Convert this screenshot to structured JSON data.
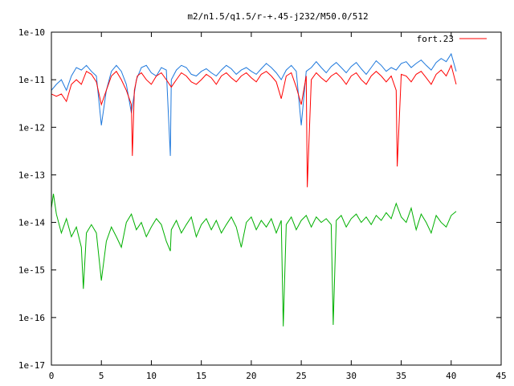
{
  "chart_data": {
    "type": "line",
    "title": "m2/n1.5/q1.5/r-+.45-j232/M50.0/512",
    "xlabel": "",
    "ylabel": "",
    "xlim": [
      0,
      45
    ],
    "ylim": [
      1e-17,
      1e-10
    ],
    "y_log_scale": true,
    "grid": false,
    "legend_position": "top-right",
    "x_ticks": [
      0,
      5,
      10,
      15,
      20,
      25,
      30,
      35,
      40,
      45
    ],
    "x_tick_labels": [
      "0",
      "5",
      "10",
      "15",
      "20",
      "25",
      "30",
      "35",
      "40",
      "45"
    ],
    "y_ticks": [
      1e-17,
      1e-16,
      1e-15,
      1e-14,
      1e-13,
      1e-12,
      1e-11,
      1e-10
    ],
    "y_tick_labels": [
      "1e-17",
      "1e-16",
      "1e-15",
      "1e-14",
      "1e-13",
      "1e-12",
      "1e-11",
      "1e-10"
    ],
    "series": [
      {
        "name": "fort.23",
        "color": "#ff0000",
        "x": [
          0,
          0.5,
          1,
          1.5,
          2,
          2.5,
          3,
          3.5,
          4,
          4.5,
          5,
          5.5,
          6,
          6.5,
          7,
          7.5,
          8,
          8.1,
          8.3,
          8.6,
          9,
          9.5,
          10,
          10.5,
          11,
          11.5,
          12,
          12.5,
          13,
          13.5,
          14,
          14.5,
          15,
          15.5,
          16,
          16.5,
          17,
          17.5,
          18,
          18.5,
          19,
          19.5,
          20,
          20.5,
          21,
          21.5,
          22,
          22.5,
          23,
          23.5,
          24,
          24.5,
          25,
          25.5,
          25.6,
          26,
          26.5,
          27,
          27.5,
          28,
          28.5,
          29,
          29.5,
          30,
          30.5,
          31,
          31.5,
          32,
          32.5,
          33,
          33.5,
          34,
          34.5,
          34.6,
          35,
          35.5,
          36,
          36.5,
          37,
          37.5,
          38,
          38.5,
          39,
          39.5,
          40,
          40.5
        ],
        "values": [
          5e-12,
          4.5e-12,
          5e-12,
          3.5e-12,
          8e-12,
          1e-11,
          8e-12,
          1.5e-11,
          1.3e-11,
          9e-12,
          3e-12,
          6e-12,
          1.2e-11,
          1.5e-11,
          1e-11,
          6e-12,
          3e-12,
          2.5e-13,
          6e-12,
          1.2e-11,
          1.4e-11,
          1e-11,
          8e-12,
          1.2e-11,
          1.4e-11,
          1e-11,
          7e-12,
          1e-11,
          1.4e-11,
          1.2e-11,
          9e-12,
          8e-12,
          1e-11,
          1.3e-11,
          1.1e-11,
          8e-12,
          1.2e-11,
          1.4e-11,
          1.1e-11,
          9e-12,
          1.2e-11,
          1.4e-11,
          1.1e-11,
          9e-12,
          1.3e-11,
          1.5e-11,
          1.2e-11,
          9e-12,
          4e-12,
          1.2e-11,
          1.4e-11,
          7e-12,
          3e-12,
          1.2e-11,
          5.5e-14,
          1e-11,
          1.4e-11,
          1.1e-11,
          9e-12,
          1.2e-11,
          1.4e-11,
          1.1e-11,
          8e-12,
          1.2e-11,
          1.4e-11,
          1e-11,
          8e-12,
          1.2e-11,
          1.5e-11,
          1.2e-11,
          9e-12,
          1.2e-11,
          6e-12,
          1.5e-13,
          1.3e-11,
          1.2e-11,
          9e-12,
          1.3e-11,
          1.5e-11,
          1.1e-11,
          8e-12,
          1.3e-11,
          1.6e-11,
          1.2e-11,
          2e-11,
          8e-12
        ]
      },
      {
        "name": "",
        "color": "#1e78dc",
        "x": [
          0,
          0.5,
          1,
          1.5,
          2,
          2.5,
          3,
          3.5,
          4,
          4.5,
          5,
          5.5,
          6,
          6.5,
          7,
          7.5,
          8,
          8.5,
          9,
          9.5,
          10,
          10.5,
          11,
          11.5,
          11.9,
          12,
          12.5,
          13,
          13.5,
          14,
          14.5,
          15,
          15.5,
          16,
          16.5,
          17,
          17.5,
          18,
          18.5,
          19,
          19.5,
          20,
          20.5,
          21,
          21.5,
          22,
          22.5,
          23,
          23.5,
          24,
          24.5,
          25,
          25.5,
          26,
          26.5,
          27,
          27.5,
          28,
          28.5,
          29,
          29.5,
          30,
          30.5,
          31,
          31.5,
          32,
          32.5,
          33,
          33.5,
          34,
          34.5,
          35,
          35.5,
          36,
          36.5,
          37,
          37.5,
          38,
          38.5,
          39,
          39.5,
          40,
          40.5
        ],
        "values": [
          6e-12,
          8e-12,
          1e-11,
          6e-12,
          1.2e-11,
          1.8e-11,
          1.6e-11,
          2e-11,
          1.5e-11,
          1.2e-11,
          1.1e-12,
          6e-12,
          1.5e-11,
          2e-11,
          1.5e-11,
          8e-12,
          2e-12,
          1e-11,
          1.8e-11,
          2e-11,
          1.4e-11,
          1.2e-11,
          1.8e-11,
          1.6e-11,
          2.5e-13,
          1e-11,
          1.6e-11,
          2e-11,
          1.8e-11,
          1.3e-11,
          1.2e-11,
          1.5e-11,
          1.7e-11,
          1.4e-11,
          1.2e-11,
          1.6e-11,
          2e-11,
          1.7e-11,
          1.3e-11,
          1.6e-11,
          1.8e-11,
          1.5e-11,
          1.3e-11,
          1.7e-11,
          2.2e-11,
          1.8e-11,
          1.4e-11,
          1e-11,
          1.6e-11,
          2e-11,
          1.5e-11,
          1.1e-12,
          1.5e-11,
          1.8e-11,
          2.4e-11,
          1.8e-11,
          1.4e-11,
          1.9e-11,
          2.3e-11,
          1.8e-11,
          1.4e-11,
          1.9e-11,
          2.3e-11,
          1.7e-11,
          1.3e-11,
          1.8e-11,
          2.5e-11,
          2e-11,
          1.5e-11,
          1.8e-11,
          1.6e-11,
          2.2e-11,
          2.4e-11,
          1.8e-11,
          2.2e-11,
          2.6e-11,
          2e-11,
          1.6e-11,
          2.3e-11,
          2.8e-11,
          2.4e-11,
          3.5e-11,
          1.5e-11
        ]
      },
      {
        "name": "",
        "color": "#00b000",
        "x": [
          0,
          0.2,
          0.5,
          1,
          1.5,
          2,
          2.5,
          3,
          3.2,
          3.5,
          4,
          4.5,
          5,
          5.5,
          6,
          6.5,
          7,
          7.5,
          8,
          8.5,
          9,
          9.5,
          10,
          10.5,
          11,
          11.5,
          11.9,
          12,
          12.5,
          13,
          13.5,
          14,
          14.5,
          15,
          15.5,
          16,
          16.5,
          17,
          17.5,
          18,
          18.5,
          19,
          19.5,
          20,
          20.5,
          21,
          21.5,
          22,
          22.5,
          23,
          23.2,
          23.5,
          24,
          24.5,
          25,
          25.5,
          26,
          26.5,
          27,
          27.5,
          28,
          28.2,
          28.5,
          29,
          29.5,
          30,
          30.5,
          31,
          31.5,
          32,
          32.5,
          33,
          33.5,
          34,
          34.5,
          35,
          35.5,
          36,
          36.5,
          37,
          37.5,
          38,
          38.5,
          39,
          39.5,
          40,
          40.5
        ],
        "values": [
          2e-14,
          4e-14,
          1.5e-14,
          6e-15,
          1.2e-14,
          5e-15,
          8e-15,
          3e-15,
          4e-16,
          6e-15,
          9e-15,
          6e-15,
          6e-16,
          4e-15,
          8e-15,
          5e-15,
          3e-15,
          1e-14,
          1.5e-14,
          7e-15,
          1e-14,
          5e-15,
          8e-15,
          1.2e-14,
          9e-15,
          4e-15,
          2.5e-15,
          7e-15,
          1.1e-14,
          6e-15,
          9e-15,
          1.3e-14,
          5e-15,
          9e-15,
          1.2e-14,
          7e-15,
          1.1e-14,
          6e-15,
          9e-15,
          1.3e-14,
          8e-15,
          3e-15,
          1e-14,
          1.3e-14,
          7e-15,
          1.1e-14,
          8e-15,
          1.2e-14,
          6e-15,
          1.1e-14,
          6.5e-17,
          9e-15,
          1.3e-14,
          7e-15,
          1.1e-14,
          1.4e-14,
          8e-15,
          1.3e-14,
          1e-14,
          1.2e-14,
          9e-15,
          7e-17,
          1.1e-14,
          1.4e-14,
          8e-15,
          1.2e-14,
          1.5e-14,
          1e-14,
          1.3e-14,
          9e-15,
          1.4e-14,
          1.1e-14,
          1.6e-14,
          1.2e-14,
          2.5e-14,
          1.3e-14,
          1e-14,
          2e-14,
          7e-15,
          1.5e-14,
          1e-14,
          6e-15,
          1.4e-14,
          1e-14,
          8e-15,
          1.4e-14,
          1.7e-14
        ]
      }
    ]
  }
}
